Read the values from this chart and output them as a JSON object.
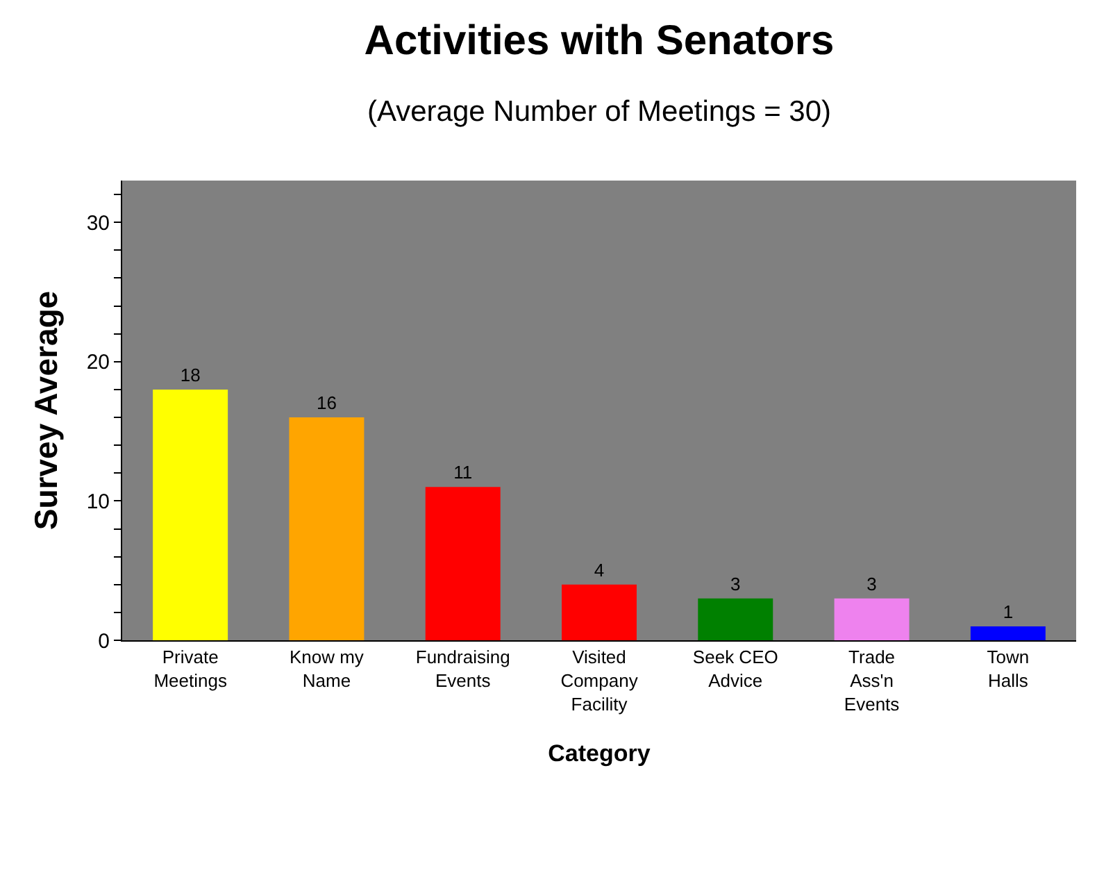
{
  "chart_data": {
    "type": "bar",
    "title": "Activities with Senators",
    "subtitle": "(Average Number of Meetings = 30)",
    "xlabel": "Category",
    "ylabel": "Survey Average",
    "categories": [
      "Private\nMeetings",
      "Know my\nName",
      "Fundraising\nEvents",
      "Visited\nCompany\nFacility",
      "Seek CEO\nAdvice",
      "Trade\nAss'n\nEvents",
      "Town\nHalls"
    ],
    "values": [
      18,
      16,
      11,
      4,
      3,
      3,
      1
    ],
    "colors": [
      "#ffff00",
      "#ffa500",
      "#ff0000",
      "#ff0000",
      "#008000",
      "#ee82ee",
      "#0000ff"
    ],
    "ylim": [
      0,
      33
    ],
    "yticks": [
      0,
      {
        "value": 2,
        "label": null
      },
      {
        "value": 4,
        "label": null
      },
      {
        "value": 6,
        "label": null
      },
      {
        "value": 8,
        "label": null
      },
      10,
      {
        "value": 12,
        "label": null
      },
      {
        "value": 14,
        "label": null
      },
      {
        "value": 16,
        "label": null
      },
      {
        "value": 18,
        "label": null
      },
      20,
      {
        "value": 22,
        "label": null
      },
      {
        "value": 24,
        "label": null
      },
      {
        "value": 26,
        "label": null
      },
      {
        "value": 28,
        "label": null
      },
      30,
      {
        "value": 32,
        "label": null
      }
    ],
    "data_labels": true
  }
}
